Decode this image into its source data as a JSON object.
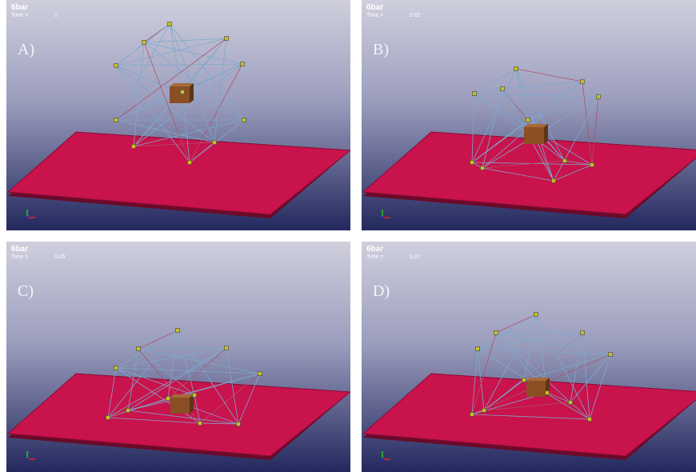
{
  "panels": [
    {
      "model": "6bar",
      "time_label": "Time =",
      "time": "0",
      "label": "A)"
    },
    {
      "model": "6bar",
      "time_label": "Time =",
      "time": "0.02",
      "label": "B)"
    },
    {
      "model": "6bar",
      "time_label": "Time =",
      "time": "0.05",
      "label": "C)"
    },
    {
      "model": "6bar",
      "time_label": "Time =",
      "time": "0.07",
      "label": "D)"
    }
  ]
}
